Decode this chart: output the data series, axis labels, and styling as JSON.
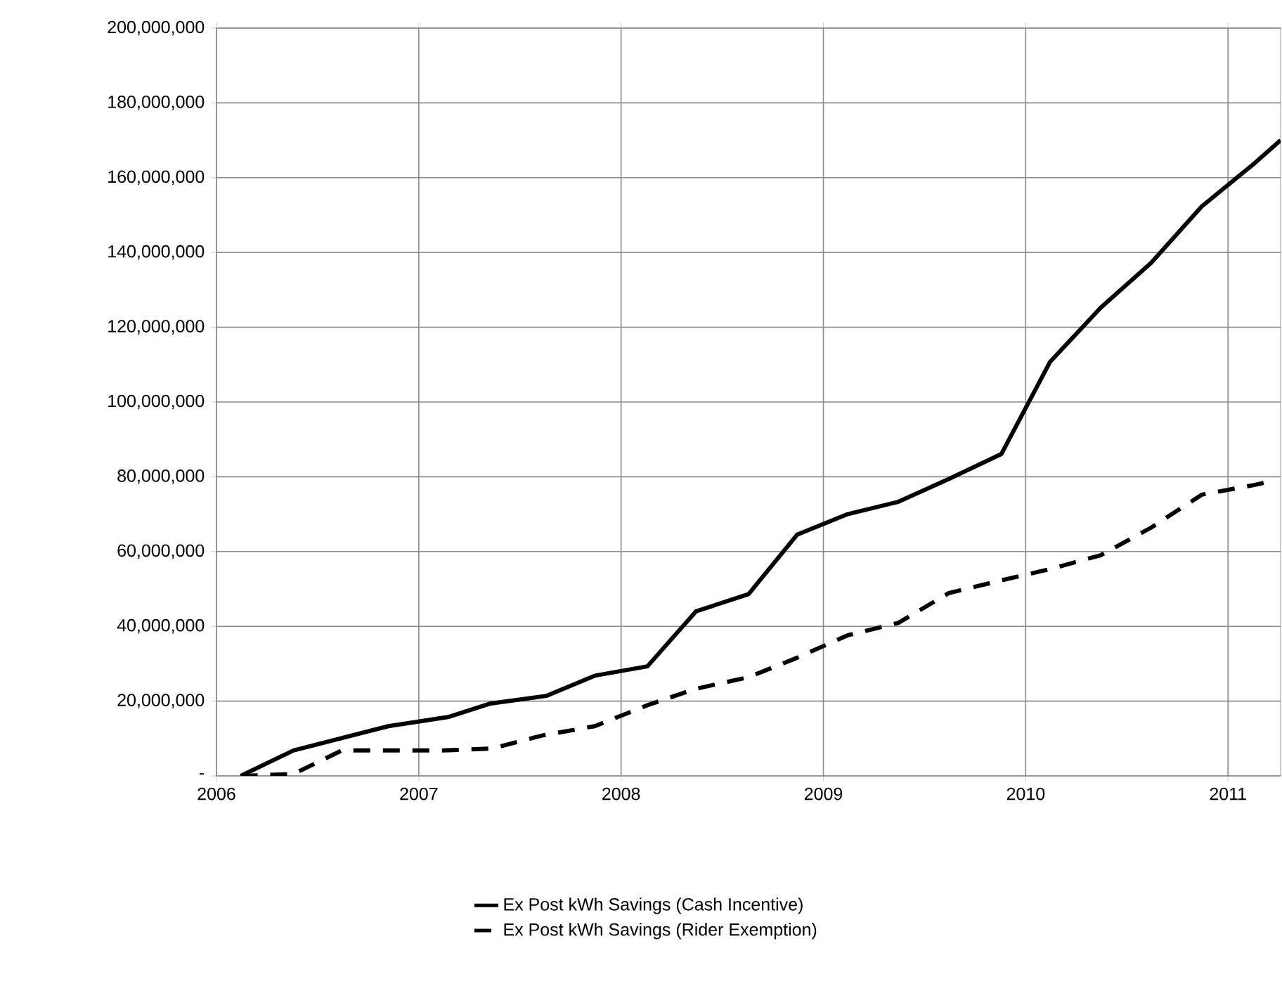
{
  "chart_data": {
    "type": "line",
    "xlim": [
      2006,
      2011.26
    ],
    "ylim": [
      0,
      200000000
    ],
    "xticks": [
      2006,
      2007,
      2008,
      2009,
      2010,
      2011
    ],
    "yticks": [
      {
        "value": 0,
        "label": "-"
      },
      {
        "value": 20000000,
        "label": "20,000,000"
      },
      {
        "value": 40000000,
        "label": "40,000,000"
      },
      {
        "value": 60000000,
        "label": "60,000,000"
      },
      {
        "value": 80000000,
        "label": "80,000,000"
      },
      {
        "value": 100000000,
        "label": "100,000,000"
      },
      {
        "value": 120000000,
        "label": "120,000,000"
      },
      {
        "value": 140000000,
        "label": "140,000,000"
      },
      {
        "value": 160000000,
        "label": "160,000,000"
      },
      {
        "value": 180000000,
        "label": "180,000,000"
      },
      {
        "value": 200000000,
        "label": "200,000,000"
      }
    ],
    "grid": true,
    "legend": "bottom",
    "marker": "none",
    "series": [
      {
        "name": "Ex Post kWh Savings (Cash Incentive)",
        "color": "#000000",
        "line_style": "solid",
        "x": [
          2006.12,
          2006.38,
          2006.85,
          2007.15,
          2007.35,
          2007.63,
          2007.87,
          2008.13,
          2008.37,
          2008.63,
          2008.87,
          2009.12,
          2009.37,
          2009.62,
          2009.88,
          2010.12,
          2010.37,
          2010.62,
          2010.87,
          2011.13,
          2011.26
        ],
        "values": [
          0,
          6800000,
          13300000,
          15800000,
          19300000,
          21400000,
          26800000,
          29300000,
          44000000,
          48600000,
          64500000,
          70000000,
          73300000,
          79400000,
          86100000,
          110700000,
          125200000,
          137200000,
          152300000,
          163800000,
          170000000
        ]
      },
      {
        "name": "Ex Post kWh Savings (Rider Exemption)",
        "color": "#000000",
        "line_style": "dashed",
        "x": [
          2006.12,
          2006.38,
          2006.62,
          2007.12,
          2007.36,
          2007.61,
          2007.87,
          2008.13,
          2008.37,
          2008.63,
          2008.87,
          2009.12,
          2009.37,
          2009.62,
          2009.88,
          2010.12,
          2010.37,
          2010.62,
          2010.87,
          2011.13,
          2011.21
        ],
        "values": [
          0,
          500000,
          6800000,
          6800000,
          7300000,
          10800000,
          13300000,
          18900000,
          23300000,
          26400000,
          31600000,
          37600000,
          40900000,
          48900000,
          52300000,
          55300000,
          59000000,
          66400000,
          75200000,
          77800000,
          78800000
        ]
      }
    ]
  }
}
